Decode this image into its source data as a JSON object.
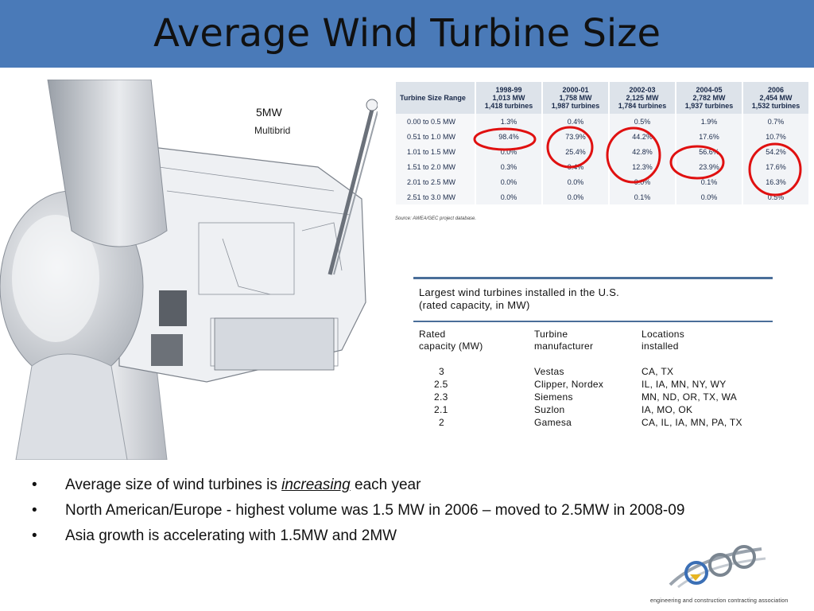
{
  "slide": {
    "title": "Average Wind Turbine Size"
  },
  "turbine_image": {
    "label": "5MW",
    "sublabel": "Multibrid"
  },
  "size_table": {
    "columns": [
      {
        "label": "Turbine Size Range"
      },
      {
        "period": "1998-99",
        "capacity": "1,013 MW",
        "turbines": "1,418 turbines"
      },
      {
        "period": "2000-01",
        "capacity": "1,758 MW",
        "turbines": "1,987 turbines"
      },
      {
        "period": "2002-03",
        "capacity": "2,125 MW",
        "turbines": "1,784 turbines"
      },
      {
        "period": "2004-05",
        "capacity": "2,782 MW",
        "turbines": "1,937 turbines"
      },
      {
        "period": "2006",
        "capacity": "2,454 MW",
        "turbines": "1,532 turbines"
      }
    ],
    "rows": [
      {
        "range": "0.00 to 0.5 MW",
        "values": [
          "1.3%",
          "0.4%",
          "0.5%",
          "1.9%",
          "0.7%"
        ]
      },
      {
        "range": "0.51 to 1.0 MW",
        "values": [
          "98.4%",
          "73.9%",
          "44.2%",
          "17.6%",
          "10.7%"
        ]
      },
      {
        "range": "1.01 to 1.5 MW",
        "values": [
          "0.0%",
          "25.4%",
          "42.8%",
          "56.6%",
          "54.2%"
        ]
      },
      {
        "range": "1.51 to 2.0 MW",
        "values": [
          "0.3%",
          "0.4%",
          "12.3%",
          "23.9%",
          "17.6%"
        ]
      },
      {
        "range": "2.01 to 2.5 MW",
        "values": [
          "0.0%",
          "0.0%",
          "0.0%",
          "0.1%",
          "16.3%"
        ]
      },
      {
        "range": "2.51 to 3.0 MW",
        "values": [
          "0.0%",
          "0.0%",
          "0.1%",
          "0.0%",
          "0.5%"
        ]
      }
    ],
    "source": "Source: AWEA/GEC project database.",
    "highlight_color": "#e01010"
  },
  "largest_turbines": {
    "title_line1": "Largest wind turbines installed in the U.S.",
    "title_line2": "(rated capacity, in MW)",
    "headers": {
      "capacity_line1": "Rated",
      "capacity_line2": "capacity (MW)",
      "manufacturer_line1": "Turbine",
      "manufacturer_line2": "manufacturer",
      "locations_line1": "Locations",
      "locations_line2": "installed"
    },
    "rows": [
      {
        "capacity": "3",
        "manufacturer": "Vestas",
        "locations": "CA, TX"
      },
      {
        "capacity": "2.5",
        "manufacturer": "Clipper, Nordex",
        "locations": "IL, IA, MN, NY, WY"
      },
      {
        "capacity": "2.3",
        "manufacturer": "Siemens",
        "locations": "MN, ND, OR, TX, WA"
      },
      {
        "capacity": "2.1",
        "manufacturer": "Suzlon",
        "locations": "IA, MO, OK"
      },
      {
        "capacity": "2",
        "manufacturer": "Gamesa",
        "locations": "CA, IL, IA, MN, PA, TX"
      }
    ]
  },
  "bullets": {
    "b1_before": "Average size of wind turbines is ",
    "b1_emph": "increasing",
    "b1_after": " each year",
    "b2": "North American/Europe  - highest volume was 1.5 MW in 2006 – moved to 2.5MW in 2008-09",
    "b3": "Asia growth is accelerating with 1.5MW and 2MW",
    "marker": "•"
  },
  "logo": {
    "tagline": "engineering and construction contracting association"
  },
  "colors": {
    "title_bar": "#4a7ab8",
    "table_rule": "#4a6e99"
  }
}
